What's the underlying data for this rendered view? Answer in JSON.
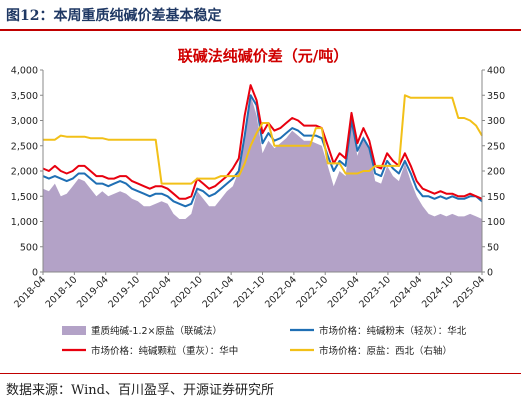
{
  "figure": {
    "title": "图12：本周重质纯碱价差基本稳定",
    "source": "数据来源：Wind、百川盈孚、开源证券研究所"
  },
  "colors": {
    "title_text": "#1f3864",
    "rule": "#c00000",
    "chart_title": "#d00000",
    "area": "#b3a2c7",
    "blue": "#1f6fb4",
    "red": "#e8000f",
    "gold": "#f2c018"
  },
  "chart_data": {
    "type": "line",
    "title": "联碱法纯碱价差（元/吨）",
    "x_ticks": [
      "2018-04",
      "2018-10",
      "2019-04",
      "2019-10",
      "2020-04",
      "2020-10",
      "2021-04",
      "2021-10",
      "2022-04",
      "2022-10",
      "2023-04",
      "2023-10",
      "2024-04",
      "2024-10",
      "2025-04"
    ],
    "x_start": "2018-04",
    "y_left": {
      "lim": [
        0,
        4000
      ],
      "ticks": [
        "0",
        "500",
        "1,000",
        "1,500",
        "2,000",
        "2,500",
        "3,000",
        "3,500",
        "4,000"
      ]
    },
    "y_right": {
      "lim": [
        0,
        400
      ],
      "ticks": [
        "0",
        "50",
        "100",
        "150",
        "200",
        "250",
        "300",
        "350",
        "400"
      ]
    },
    "grid": false,
    "legend_position": "bottom",
    "series": [
      {
        "name": "重质纯碱-1.2×原盐（联碱法）",
        "type": "area",
        "axis": "left",
        "color": "#b3a2c7",
        "points": [
          [
            0,
            1650
          ],
          [
            1,
            1600
          ],
          [
            2,
            1750
          ],
          [
            3,
            1500
          ],
          [
            4,
            1550
          ],
          [
            5,
            1700
          ],
          [
            6,
            1850
          ],
          [
            7,
            1800
          ],
          [
            8,
            1650
          ],
          [
            9,
            1500
          ],
          [
            10,
            1600
          ],
          [
            11,
            1500
          ],
          [
            12,
            1550
          ],
          [
            13,
            1600
          ],
          [
            14,
            1550
          ],
          [
            15,
            1450
          ],
          [
            16,
            1400
          ],
          [
            17,
            1300
          ],
          [
            18,
            1300
          ],
          [
            19,
            1350
          ],
          [
            20,
            1400
          ],
          [
            21,
            1350
          ],
          [
            22,
            1150
          ],
          [
            23,
            1050
          ],
          [
            24,
            1050
          ],
          [
            25,
            1150
          ],
          [
            26,
            1600
          ],
          [
            27,
            1450
          ],
          [
            28,
            1300
          ],
          [
            29,
            1300
          ],
          [
            30,
            1450
          ],
          [
            31,
            1600
          ],
          [
            32,
            1700
          ],
          [
            33,
            2000
          ],
          [
            34,
            2800
          ],
          [
            35,
            3500
          ],
          [
            36,
            3100
          ],
          [
            37,
            2350
          ],
          [
            38,
            2600
          ],
          [
            39,
            2450
          ],
          [
            40,
            2550
          ],
          [
            41,
            2650
          ],
          [
            42,
            2800
          ],
          [
            43,
            2700
          ],
          [
            44,
            2600
          ],
          [
            45,
            2600
          ],
          [
            46,
            2550
          ],
          [
            47,
            2500
          ],
          [
            48,
            2100
          ],
          [
            49,
            1700
          ],
          [
            50,
            2000
          ],
          [
            51,
            1900
          ],
          [
            52,
            2950
          ],
          [
            53,
            2300
          ],
          [
            54,
            2700
          ],
          [
            55,
            2400
          ],
          [
            56,
            1800
          ],
          [
            57,
            1750
          ],
          [
            58,
            2100
          ],
          [
            59,
            1900
          ],
          [
            60,
            1800
          ],
          [
            61,
            2150
          ],
          [
            62,
            1800
          ],
          [
            63,
            1500
          ],
          [
            64,
            1300
          ],
          [
            65,
            1150
          ],
          [
            66,
            1100
          ],
          [
            67,
            1150
          ],
          [
            68,
            1100
          ],
          [
            69,
            1150
          ],
          [
            70,
            1100
          ],
          [
            71,
            1100
          ],
          [
            72,
            1150
          ],
          [
            73,
            1100
          ],
          [
            74,
            1050
          ]
        ]
      },
      {
        "name": "市场价格：纯碱粉末（轻灰）：华北",
        "type": "line",
        "axis": "left",
        "color": "#1f6fb4",
        "points": [
          [
            0,
            1900
          ],
          [
            1,
            1850
          ],
          [
            2,
            1900
          ],
          [
            3,
            1850
          ],
          [
            4,
            1800
          ],
          [
            5,
            1850
          ],
          [
            6,
            1950
          ],
          [
            7,
            1950
          ],
          [
            8,
            1850
          ],
          [
            9,
            1750
          ],
          [
            10,
            1750
          ],
          [
            11,
            1700
          ],
          [
            12,
            1750
          ],
          [
            13,
            1800
          ],
          [
            14,
            1750
          ],
          [
            15,
            1650
          ],
          [
            16,
            1600
          ],
          [
            17,
            1550
          ],
          [
            18,
            1500
          ],
          [
            19,
            1550
          ],
          [
            20,
            1550
          ],
          [
            21,
            1500
          ],
          [
            22,
            1400
          ],
          [
            23,
            1350
          ],
          [
            24,
            1300
          ],
          [
            25,
            1350
          ],
          [
            26,
            1650
          ],
          [
            27,
            1600
          ],
          [
            28,
            1500
          ],
          [
            29,
            1550
          ],
          [
            30,
            1650
          ],
          [
            31,
            1750
          ],
          [
            32,
            1850
          ],
          [
            33,
            2000
          ],
          [
            34,
            2700
          ],
          [
            35,
            3500
          ],
          [
            36,
            3300
          ],
          [
            37,
            2550
          ],
          [
            38,
            2750
          ],
          [
            39,
            2600
          ],
          [
            40,
            2650
          ],
          [
            41,
            2750
          ],
          [
            42,
            2850
          ],
          [
            43,
            2800
          ],
          [
            44,
            2700
          ],
          [
            45,
            2700
          ],
          [
            46,
            2700
          ],
          [
            47,
            2650
          ],
          [
            48,
            2300
          ],
          [
            49,
            2000
          ],
          [
            50,
            2200
          ],
          [
            51,
            2100
          ],
          [
            52,
            3000
          ],
          [
            53,
            2400
          ],
          [
            54,
            2650
          ],
          [
            55,
            2450
          ],
          [
            56,
            1950
          ],
          [
            57,
            1900
          ],
          [
            58,
            2200
          ],
          [
            59,
            2050
          ],
          [
            60,
            1950
          ],
          [
            61,
            2200
          ],
          [
            62,
            1950
          ],
          [
            63,
            1650
          ],
          [
            64,
            1500
          ],
          [
            65,
            1500
          ],
          [
            66,
            1450
          ],
          [
            67,
            1500
          ],
          [
            68,
            1450
          ],
          [
            69,
            1500
          ],
          [
            70,
            1450
          ],
          [
            71,
            1450
          ],
          [
            72,
            1500
          ],
          [
            73,
            1500
          ],
          [
            74,
            1400
          ]
        ]
      },
      {
        "name": "市场价格：纯碱颗粒（重灰）：华中",
        "type": "line",
        "axis": "left",
        "color": "#e8000f",
        "points": [
          [
            0,
            2050
          ],
          [
            1,
            2000
          ],
          [
            2,
            2100
          ],
          [
            3,
            2000
          ],
          [
            4,
            1950
          ],
          [
            5,
            2000
          ],
          [
            6,
            2100
          ],
          [
            7,
            2100
          ],
          [
            8,
            2000
          ],
          [
            9,
            1900
          ],
          [
            10,
            1900
          ],
          [
            11,
            1850
          ],
          [
            12,
            1850
          ],
          [
            13,
            1900
          ],
          [
            14,
            1900
          ],
          [
            15,
            1800
          ],
          [
            16,
            1750
          ],
          [
            17,
            1700
          ],
          [
            18,
            1650
          ],
          [
            19,
            1700
          ],
          [
            20,
            1700
          ],
          [
            21,
            1650
          ],
          [
            22,
            1550
          ],
          [
            23,
            1450
          ],
          [
            24,
            1450
          ],
          [
            25,
            1500
          ],
          [
            26,
            1850
          ],
          [
            27,
            1750
          ],
          [
            28,
            1650
          ],
          [
            29,
            1700
          ],
          [
            30,
            1800
          ],
          [
            31,
            1900
          ],
          [
            32,
            2050
          ],
          [
            33,
            2250
          ],
          [
            34,
            3100
          ],
          [
            35,
            3700
          ],
          [
            36,
            3400
          ],
          [
            37,
            2750
          ],
          [
            38,
            2950
          ],
          [
            39,
            2800
          ],
          [
            40,
            2850
          ],
          [
            41,
            2950
          ],
          [
            42,
            3050
          ],
          [
            43,
            3000
          ],
          [
            44,
            2900
          ],
          [
            45,
            2900
          ],
          [
            46,
            2900
          ],
          [
            47,
            2850
          ],
          [
            48,
            2500
          ],
          [
            49,
            2150
          ],
          [
            50,
            2350
          ],
          [
            51,
            2250
          ],
          [
            52,
            3150
          ],
          [
            53,
            2550
          ],
          [
            54,
            2850
          ],
          [
            55,
            2600
          ],
          [
            56,
            2100
          ],
          [
            57,
            2050
          ],
          [
            58,
            2350
          ],
          [
            59,
            2200
          ],
          [
            60,
            2100
          ],
          [
            61,
            2350
          ],
          [
            62,
            2100
          ],
          [
            63,
            1800
          ],
          [
            64,
            1650
          ],
          [
            65,
            1600
          ],
          [
            66,
            1550
          ],
          [
            67,
            1600
          ],
          [
            68,
            1550
          ],
          [
            69,
            1550
          ],
          [
            70,
            1500
          ],
          [
            71,
            1500
          ],
          [
            72,
            1550
          ],
          [
            73,
            1500
          ],
          [
            74,
            1450
          ]
        ]
      },
      {
        "name": "市场价格：原盐：西北（右轴）",
        "type": "line",
        "axis": "right",
        "color": "#f2c018",
        "points": [
          [
            0,
            262
          ],
          [
            1,
            262
          ],
          [
            2,
            262
          ],
          [
            3,
            270
          ],
          [
            4,
            268
          ],
          [
            5,
            268
          ],
          [
            6,
            268
          ],
          [
            7,
            268
          ],
          [
            8,
            265
          ],
          [
            9,
            265
          ],
          [
            10,
            265
          ],
          [
            11,
            262
          ],
          [
            12,
            262
          ],
          [
            13,
            262
          ],
          [
            14,
            262
          ],
          [
            15,
            262
          ],
          [
            16,
            262
          ],
          [
            17,
            262
          ],
          [
            18,
            262
          ],
          [
            19,
            262
          ],
          [
            20,
            175
          ],
          [
            21,
            175
          ],
          [
            22,
            175
          ],
          [
            23,
            175
          ],
          [
            24,
            175
          ],
          [
            25,
            175
          ],
          [
            26,
            185
          ],
          [
            27,
            185
          ],
          [
            28,
            185
          ],
          [
            29,
            185
          ],
          [
            30,
            190
          ],
          [
            31,
            190
          ],
          [
            32,
            190
          ],
          [
            33,
            190
          ],
          [
            34,
            215
          ],
          [
            35,
            250
          ],
          [
            36,
            275
          ],
          [
            37,
            295
          ],
          [
            38,
            295
          ],
          [
            39,
            250
          ],
          [
            40,
            250
          ],
          [
            41,
            250
          ],
          [
            42,
            250
          ],
          [
            43,
            250
          ],
          [
            44,
            250
          ],
          [
            45,
            250
          ],
          [
            46,
            285
          ],
          [
            47,
            285
          ],
          [
            48,
            215
          ],
          [
            49,
            215
          ],
          [
            50,
            215
          ],
          [
            51,
            195
          ],
          [
            52,
            195
          ],
          [
            53,
            195
          ],
          [
            54,
            200
          ],
          [
            55,
            200
          ],
          [
            56,
            210
          ],
          [
            57,
            210
          ],
          [
            58,
            210
          ],
          [
            59,
            210
          ],
          [
            60,
            210
          ],
          [
            61,
            350
          ],
          [
            62,
            345
          ],
          [
            63,
            345
          ],
          [
            64,
            345
          ],
          [
            65,
            345
          ],
          [
            66,
            345
          ],
          [
            67,
            345
          ],
          [
            68,
            345
          ],
          [
            69,
            345
          ],
          [
            70,
            305
          ],
          [
            71,
            305
          ],
          [
            72,
            300
          ],
          [
            73,
            290
          ],
          [
            74,
            270
          ]
        ]
      }
    ]
  }
}
